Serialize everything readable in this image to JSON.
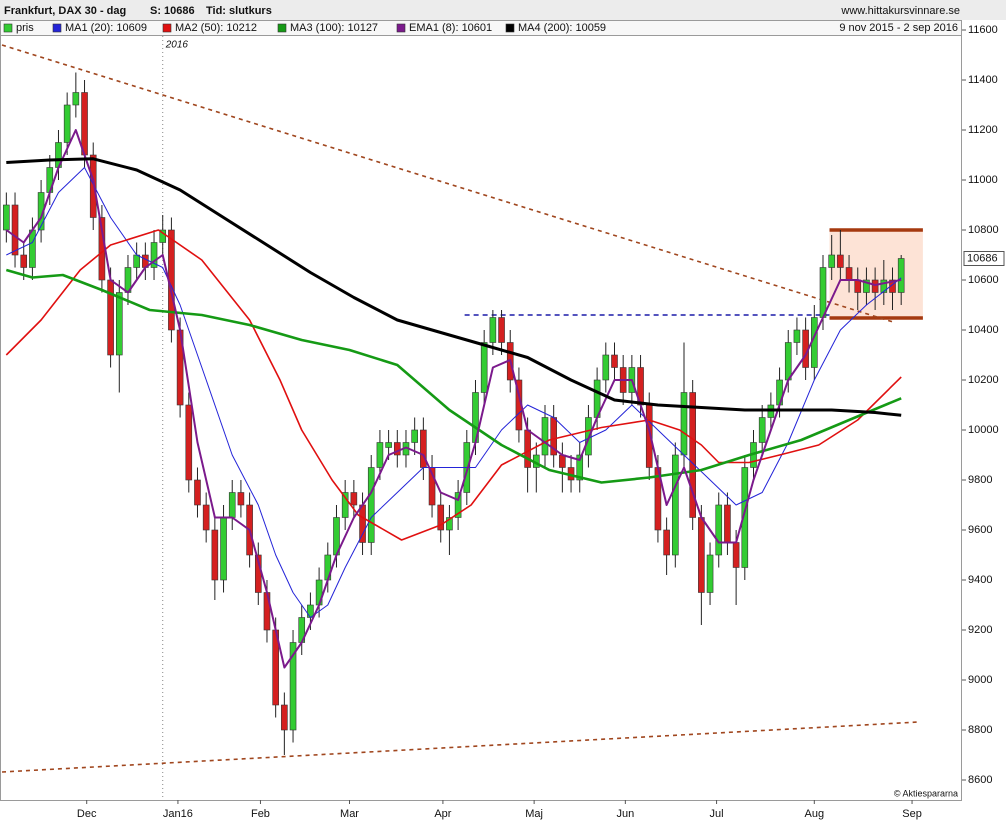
{
  "chart_data": {
    "type": "candlestick",
    "title": "Frankfurt, DAX 30 - dag",
    "last_price_text": "S: 10686",
    "price_type": "Tid: slutkurs",
    "source": "www.hittakursvinnare.se",
    "date_range": "9 nov 2015 - 2 sep 2016",
    "year_divider": {
      "value": 36,
      "label": "2016"
    },
    "credit": "© Aktiespararna",
    "last_value": 10686,
    "xlim": [
      -1,
      220
    ],
    "ylim": [
      8520,
      11632
    ],
    "yticks": [
      8600,
      8800,
      9000,
      9200,
      9400,
      9600,
      9800,
      10000,
      10200,
      10400,
      10600,
      10800,
      11000,
      11200,
      11400,
      11600
    ],
    "xticks": [
      {
        "value": 18.5,
        "label": "Dec"
      },
      {
        "value": 39.5,
        "label": "Jan16"
      },
      {
        "value": 58.5,
        "label": "Feb"
      },
      {
        "value": 79,
        "label": "Mar"
      },
      {
        "value": 100.5,
        "label": "Apr"
      },
      {
        "value": 121.5,
        "label": "Maj"
      },
      {
        "value": 142.5,
        "label": "Jun"
      },
      {
        "value": 163.5,
        "label": "Jul"
      },
      {
        "value": 186,
        "label": "Aug"
      },
      {
        "value": 208.5,
        "label": "Sep"
      }
    ],
    "candles": {
      "name": "pris",
      "color_up": "#33cc33",
      "color_down": "#d42020",
      "x": [
        0,
        2,
        4,
        6,
        8,
        10,
        12,
        14,
        16,
        18,
        20,
        22,
        24,
        26,
        28,
        30,
        32,
        34,
        36,
        38,
        40,
        42,
        44,
        46,
        48,
        50,
        52,
        54,
        56,
        58,
        60,
        62,
        64,
        66,
        68,
        70,
        72,
        74,
        76,
        78,
        80,
        82,
        84,
        86,
        88,
        90,
        92,
        94,
        96,
        98,
        100,
        102,
        104,
        106,
        108,
        110,
        112,
        114,
        116,
        118,
        120,
        122,
        124,
        126,
        128,
        130,
        132,
        134,
        136,
        138,
        140,
        142,
        144,
        146,
        148,
        150,
        152,
        154,
        156,
        158,
        160,
        162,
        164,
        166,
        168,
        170,
        172,
        174,
        176,
        178,
        180,
        182,
        184,
        186,
        188,
        190,
        192,
        194,
        196,
        198,
        200,
        202,
        204,
        206
      ],
      "open": [
        10800,
        10900,
        10700,
        10650,
        10800,
        10950,
        11050,
        11150,
        11300,
        11350,
        11100,
        10850,
        10600,
        10300,
        10550,
        10650,
        10700,
        10650,
        10750,
        10800,
        10400,
        10100,
        9800,
        9700,
        9600,
        9400,
        9650,
        9750,
        9700,
        9500,
        9350,
        9200,
        8900,
        8800,
        9150,
        9250,
        9300,
        9400,
        9500,
        9650,
        9750,
        9700,
        9550,
        9850,
        9930,
        9950,
        9900,
        9950,
        10000,
        9850,
        9700,
        9600,
        9650,
        9750,
        9950,
        10150,
        10350,
        10450,
        10350,
        10200,
        10000,
        9850,
        9900,
        10050,
        9900,
        9850,
        9800,
        9900,
        10050,
        10200,
        10300,
        10250,
        10150,
        10250,
        10100,
        9850,
        9600,
        9500,
        9900,
        10150,
        9650,
        9350,
        9500,
        9700,
        9550,
        9450,
        9850,
        9950,
        10050,
        10100,
        10200,
        10350,
        10400,
        10250,
        10450,
        10650,
        10700,
        10650,
        10600,
        10550,
        10600,
        10550,
        10600,
        10550
      ],
      "high": [
        10950,
        10950,
        10750,
        10850,
        11000,
        11100,
        11200,
        11350,
        11430,
        11400,
        11150,
        10900,
        10650,
        10600,
        10700,
        10750,
        10750,
        10800,
        10860,
        10850,
        10450,
        10150,
        9850,
        9750,
        9650,
        9700,
        9800,
        9800,
        9750,
        9550,
        9400,
        9250,
        8950,
        9200,
        9300,
        9350,
        9450,
        9550,
        9700,
        9800,
        9800,
        9750,
        9900,
        10000,
        10000,
        10000,
        10000,
        10050,
        10050,
        9900,
        9750,
        9700,
        9800,
        10000,
        10200,
        10400,
        10480,
        10480,
        10400,
        10250,
        10050,
        9950,
        10100,
        10100,
        9950,
        9900,
        9950,
        10100,
        10250,
        10350,
        10350,
        10300,
        10300,
        10300,
        10150,
        9900,
        9650,
        9950,
        10350,
        10200,
        9700,
        9550,
        9750,
        9750,
        9600,
        9900,
        10000,
        10100,
        10150,
        10250,
        10400,
        10450,
        10450,
        10500,
        10700,
        10780,
        10800,
        10700,
        10650,
        10650,
        10650,
        10680,
        10650,
        10700
      ],
      "low": [
        10750,
        10650,
        10600,
        10600,
        10750,
        10900,
        11000,
        11100,
        11250,
        11050,
        10800,
        10550,
        10250,
        10150,
        10500,
        10600,
        10600,
        10600,
        10700,
        10350,
        10050,
        9750,
        9650,
        9550,
        9320,
        9350,
        9600,
        9650,
        9450,
        9300,
        9150,
        8850,
        8700,
        8750,
        9100,
        9200,
        9250,
        9350,
        9450,
        9600,
        9650,
        9500,
        9500,
        9800,
        9880,
        9850,
        9850,
        9900,
        9800,
        9650,
        9550,
        9500,
        9600,
        9700,
        9900,
        10100,
        10300,
        10300,
        10150,
        9950,
        9750,
        9750,
        9850,
        9850,
        9750,
        9750,
        9750,
        9850,
        10000,
        10150,
        10200,
        10100,
        10100,
        10050,
        9800,
        9550,
        9420,
        9450,
        9850,
        9600,
        9220,
        9300,
        9450,
        9500,
        9300,
        9400,
        9800,
        9900,
        10000,
        10050,
        10150,
        10300,
        10200,
        10200,
        10400,
        10600,
        10600,
        10550,
        10480,
        10500,
        10480,
        10500,
        10480,
        10500
      ],
      "close": [
        10900,
        10700,
        10650,
        10800,
        10950,
        11050,
        11150,
        11300,
        11350,
        11100,
        10850,
        10600,
        10300,
        10550,
        10650,
        10700,
        10650,
        10750,
        10800,
        10400,
        10100,
        9800,
        9700,
        9600,
        9400,
        9650,
        9750,
        9700,
        9500,
        9350,
        9200,
        8900,
        8800,
        9150,
        9250,
        9300,
        9400,
        9500,
        9650,
        9750,
        9700,
        9550,
        9850,
        9950,
        9950,
        9900,
        9950,
        10000,
        9850,
        9700,
        9600,
        9650,
        9750,
        9950,
        10150,
        10350,
        10450,
        10350,
        10200,
        10000,
        9850,
        9900,
        10050,
        9900,
        9850,
        9800,
        9900,
        10050,
        10200,
        10300,
        10250,
        10150,
        10250,
        10100,
        9850,
        9600,
        9500,
        9900,
        10150,
        9650,
        9350,
        9500,
        9700,
        9550,
        9450,
        9850,
        9950,
        10050,
        10100,
        10200,
        10350,
        10400,
        10250,
        10450,
        10650,
        10700,
        10650,
        10600,
        10550,
        10600,
        10550,
        10600,
        10550,
        10686
      ]
    },
    "series": [
      {
        "name": "MA1 (20): 10609",
        "color": "#2424d8",
        "width": 1,
        "x": [
          0,
          6,
          12,
          18,
          24,
          30,
          36,
          40,
          46,
          52,
          58,
          62,
          66,
          70,
          74,
          78,
          84,
          90,
          96,
          102,
          108,
          114,
          120,
          126,
          132,
          138,
          144,
          150,
          156,
          162,
          168,
          174,
          180,
          186,
          192,
          198,
          206
        ],
        "values": [
          10700,
          10750,
          10950,
          11050,
          10850,
          10700,
          10650,
          10500,
          10200,
          9900,
          9700,
          9500,
          9350,
          9250,
          9300,
          9450,
          9650,
          9750,
          9850,
          9850,
          9850,
          10000,
          10100,
          10050,
          9950,
          10000,
          10100,
          10000,
          9900,
          9800,
          9700,
          9750,
          9950,
          10200,
          10400,
          10500,
          10609
        ]
      },
      {
        "name": "MA2 (50): 10212",
        "color": "#e01010",
        "width": 1.6,
        "x": [
          0,
          8,
          17,
          24,
          35,
          45,
          56,
          63,
          68,
          75,
          81,
          91,
          100,
          107,
          114,
          125,
          137,
          148,
          155,
          160,
          164,
          171,
          178,
          187,
          196,
          206
        ],
        "values": [
          10300,
          10440,
          10640,
          10740,
          10800,
          10680,
          10440,
          10200,
          10000,
          9800,
          9660,
          9560,
          9620,
          9700,
          9860,
          9960,
          10010,
          10040,
          10000,
          9940,
          9870,
          9870,
          9900,
          9940,
          10040,
          10212
        ]
      },
      {
        "name": "MA3 (100): 10127",
        "color": "#159a15",
        "width": 2.6,
        "x": [
          0,
          6,
          13,
          22,
          33,
          45,
          56,
          68,
          79,
          90,
          102,
          114,
          125,
          137,
          148,
          160,
          171,
          183,
          194,
          206
        ],
        "values": [
          10640,
          10610,
          10620,
          10560,
          10480,
          10460,
          10420,
          10360,
          10320,
          10260,
          10080,
          9940,
          9840,
          9790,
          9810,
          9840,
          9900,
          9960,
          10040,
          10127
        ]
      },
      {
        "name": "EMA1 (8): 10601",
        "color": "#7b1a8c",
        "width": 2,
        "x": [
          0,
          4,
          8,
          12,
          16,
          20,
          24,
          28,
          32,
          36,
          40,
          44,
          48,
          52,
          56,
          60,
          64,
          68,
          72,
          76,
          80,
          84,
          88,
          92,
          96,
          100,
          104,
          108,
          112,
          116,
          120,
          124,
          128,
          132,
          136,
          140,
          144,
          148,
          152,
          156,
          160,
          164,
          168,
          172,
          176,
          180,
          184,
          188,
          192,
          196,
          200,
          206
        ],
        "values": [
          10800,
          10750,
          10850,
          11050,
          11200,
          11000,
          10600,
          10550,
          10650,
          10700,
          10400,
          9950,
          9650,
          9650,
          9600,
          9350,
          9050,
          9150,
          9300,
          9500,
          9650,
          9750,
          9900,
          9930,
          9900,
          9750,
          9720,
          9950,
          10250,
          10280,
          10000,
          9950,
          9900,
          9880,
          10050,
          10200,
          10200,
          10000,
          9700,
          9850,
          9650,
          9550,
          9550,
          9800,
          10000,
          10200,
          10300,
          10450,
          10600,
          10600,
          10580,
          10601
        ]
      },
      {
        "name": "MA4 (200): 10059",
        "color": "#000000",
        "width": 3,
        "x": [
          0,
          10,
          20,
          30,
          40,
          50,
          60,
          70,
          80,
          90,
          100,
          110,
          120,
          130,
          140,
          150,
          160,
          170,
          180,
          190,
          200,
          206
        ],
        "values": [
          11070,
          11080,
          11085,
          11040,
          10960,
          10850,
          10740,
          10630,
          10530,
          10440,
          10390,
          10340,
          10290,
          10200,
          10120,
          10100,
          10090,
          10080,
          10080,
          10080,
          10070,
          10059
        ]
      }
    ],
    "annotations": {
      "trendlines": [
        {
          "color": "#a0461e",
          "x": [
            -1,
            204.5
          ],
          "y": [
            11540,
            10430
          ]
        },
        {
          "color": "#a0461e",
          "x": [
            -1,
            210
          ],
          "y": [
            8632,
            8832
          ]
        }
      ],
      "resistance": {
        "color": "#1a1aa8",
        "x": [
          105.5,
          189.5
        ],
        "y": 10460
      },
      "range_box": {
        "fill": "#fde3d6",
        "color": "#a5390f",
        "x": [
          189.5,
          211
        ],
        "y": [
          10448,
          10800
        ]
      }
    }
  }
}
